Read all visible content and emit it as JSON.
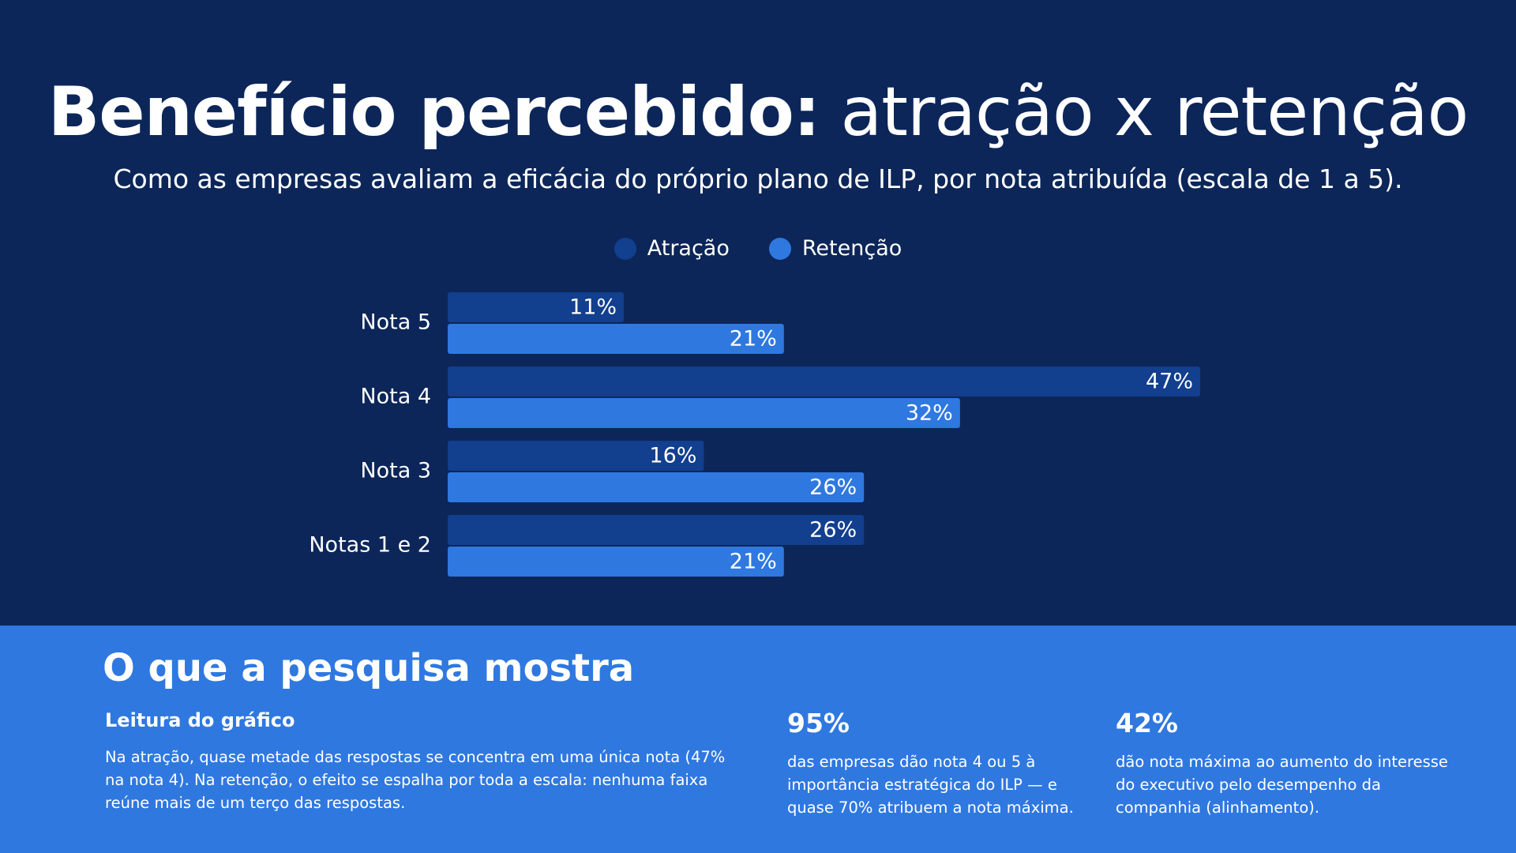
{
  "header": {
    "title_bold": "Benefício percebido:",
    "title_light": "atração x retenção",
    "subtitle": "Como as empresas avaliam a eficácia do próprio plano de ILP, por nota atribuída (escala de 1 a 5)."
  },
  "legend": [
    {
      "label": "Atração",
      "color": "#123f8e"
    },
    {
      "label": "Retenção",
      "color": "#2f78e0"
    }
  ],
  "chart_data": {
    "type": "bar",
    "orientation": "horizontal",
    "categories": [
      "Nota 5",
      "Nota 4",
      "Nota 3",
      "Notas 1 e 2"
    ],
    "series": [
      {
        "name": "Atração",
        "color": "#123f8e",
        "values": [
          11,
          47,
          16,
          26
        ],
        "labels": [
          "11%",
          "47%",
          "16%",
          "26%"
        ]
      },
      {
        "name": "Retenção",
        "color": "#2f78e0",
        "values": [
          21,
          32,
          26,
          21
        ],
        "labels": [
          "21%",
          "32%",
          "26%",
          "21%"
        ]
      }
    ],
    "xlim": [
      0,
      47
    ],
    "unit": "%",
    "legend_position": "top-center",
    "grid": false
  },
  "insights": {
    "title": "O que a pesquisa mostra",
    "reading_title": "Leitura do gráfico",
    "reading_text": "Na atração, quase metade das respostas se concentra em uma única nota (47% na nota 4). Na retenção, o efeito se espalha por toda a escala: nenhuma faixa reúne mais de um terço das respostas.",
    "stats": [
      {
        "value": "95%",
        "text": "das empresas dão nota 4 ou 5 à importância estratégica do ILP — e quase 70% atribuem a nota máxima."
      },
      {
        "value": "42%",
        "text": "dão nota máxima ao aumento do interesse do executivo pelo desempenho da companhia (alinhamento)."
      }
    ]
  }
}
